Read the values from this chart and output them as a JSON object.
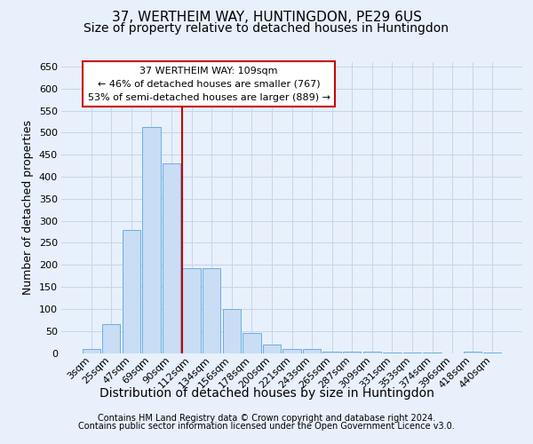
{
  "title1": "37, WERTHEIM WAY, HUNTINGDON, PE29 6US",
  "title2": "Size of property relative to detached houses in Huntingdon",
  "xlabel": "Distribution of detached houses by size in Huntingdon",
  "ylabel": "Number of detached properties",
  "categories": [
    "3sqm",
    "25sqm",
    "47sqm",
    "69sqm",
    "90sqm",
    "112sqm",
    "134sqm",
    "156sqm",
    "178sqm",
    "200sqm",
    "221sqm",
    "243sqm",
    "265sqm",
    "287sqm",
    "309sqm",
    "331sqm",
    "353sqm",
    "374sqm",
    "396sqm",
    "418sqm",
    "440sqm"
  ],
  "values": [
    10,
    65,
    280,
    513,
    430,
    192,
    192,
    100,
    45,
    20,
    10,
    10,
    3,
    3,
    3,
    2,
    2,
    2,
    0,
    3,
    2
  ],
  "bar_color": "#c9ddf5",
  "bar_edge_color": "#6aaee0",
  "vline_color": "#cc0000",
  "annotation_text": "37 WERTHEIM WAY: 109sqm\n← 46% of detached houses are smaller (767)\n53% of semi-detached houses are larger (889) →",
  "annotation_box_color": "#cc0000",
  "ylim": [
    0,
    660
  ],
  "yticks": [
    0,
    50,
    100,
    150,
    200,
    250,
    300,
    350,
    400,
    450,
    500,
    550,
    600,
    650
  ],
  "footer1": "Contains HM Land Registry data © Crown copyright and database right 2024.",
  "footer2": "Contains public sector information licensed under the Open Government Licence v3.0.",
  "bg_color": "#e8f0fb",
  "grid_color": "#c5d5ea",
  "title1_fontsize": 11,
  "title2_fontsize": 10,
  "tick_fontsize": 8,
  "ylabel_fontsize": 9,
  "xlabel_fontsize": 10,
  "footer_fontsize": 7
}
